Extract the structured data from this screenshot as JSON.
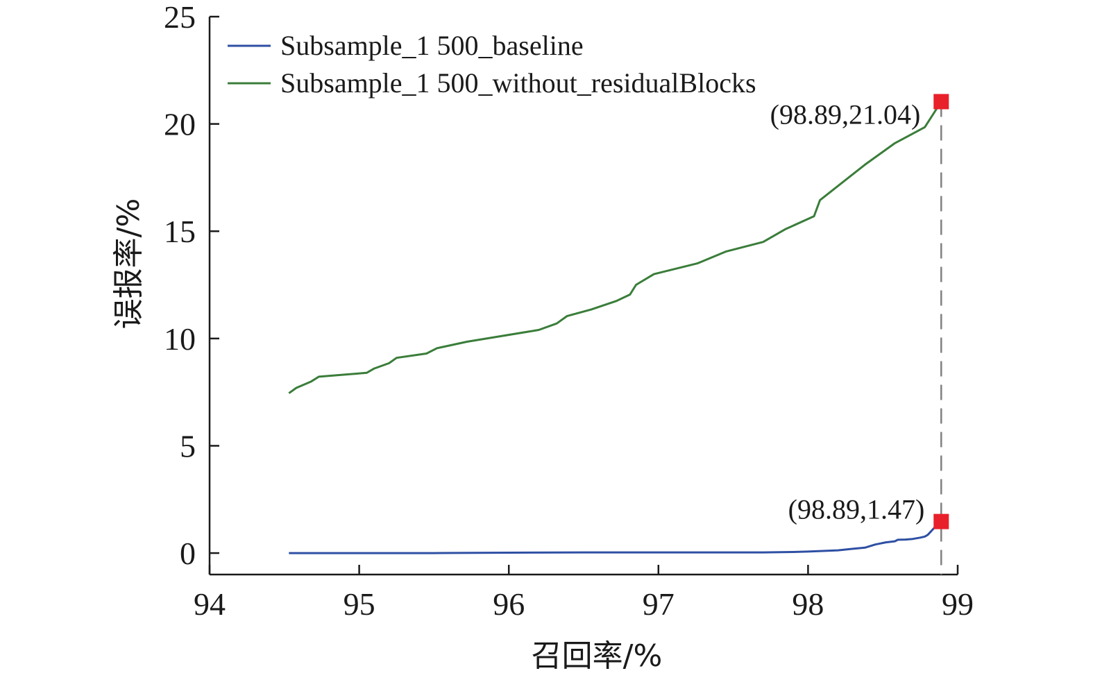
{
  "chart_data": {
    "type": "line",
    "xlabel": "召回率/%",
    "ylabel": "误报率/%",
    "xlim": [
      94,
      99
    ],
    "ylim": [
      0,
      25
    ],
    "xticks": [
      "94",
      "95",
      "96",
      "97",
      "98",
      "99"
    ],
    "yticks": [
      "0",
      "5",
      "10",
      "15",
      "20",
      "25"
    ],
    "grid": false,
    "legend_position": "top-left",
    "series": [
      {
        "name": "Subsample_1 500_baseline",
        "color": "#2e4fa3",
        "x": [
          94.53,
          95.0,
          95.5,
          96.0,
          96.5,
          97.0,
          97.5,
          97.7,
          97.9,
          98.0,
          98.1,
          98.2,
          98.3,
          98.38,
          98.45,
          98.52,
          98.58,
          98.6,
          98.65,
          98.7,
          98.75,
          98.78,
          98.8,
          98.82,
          98.84,
          98.86,
          98.87,
          98.89
        ],
        "y": [
          0.0,
          0.0,
          0.0,
          0.02,
          0.03,
          0.03,
          0.03,
          0.03,
          0.05,
          0.07,
          0.1,
          0.13,
          0.2,
          0.25,
          0.4,
          0.5,
          0.55,
          0.62,
          0.63,
          0.66,
          0.72,
          0.77,
          0.85,
          1.0,
          1.15,
          1.25,
          1.3,
          1.47
        ]
      },
      {
        "name": "Subsample_1 500_without_residualBlocks",
        "color": "#3a7d3a",
        "x": [
          94.53,
          94.58,
          94.68,
          94.73,
          95.05,
          95.1,
          95.2,
          95.25,
          95.45,
          95.52,
          95.72,
          96.2,
          96.32,
          96.39,
          96.55,
          96.72,
          96.81,
          96.85,
          96.97,
          97.26,
          97.45,
          97.7,
          97.85,
          98.04,
          98.08,
          98.38,
          98.58,
          98.78,
          98.89
        ],
        "y": [
          7.45,
          7.7,
          8.0,
          8.22,
          8.4,
          8.6,
          8.85,
          9.1,
          9.3,
          9.55,
          9.85,
          10.4,
          10.7,
          11.05,
          11.35,
          11.75,
          12.05,
          12.5,
          13.0,
          13.5,
          14.05,
          14.5,
          15.1,
          15.7,
          16.45,
          18.1,
          19.1,
          19.85,
          21.04
        ]
      }
    ],
    "annotations": [
      {
        "x": 98.89,
        "y": 21.04,
        "text": "(98.89,21.04)",
        "marker_color": "#e8202a"
      },
      {
        "x": 98.89,
        "y": 1.47,
        "text": "(98.89,1.47)",
        "marker_color": "#e8202a"
      }
    ],
    "vertical_line": {
      "x": 98.89,
      "style": "dashed",
      "color": "#808080"
    }
  }
}
